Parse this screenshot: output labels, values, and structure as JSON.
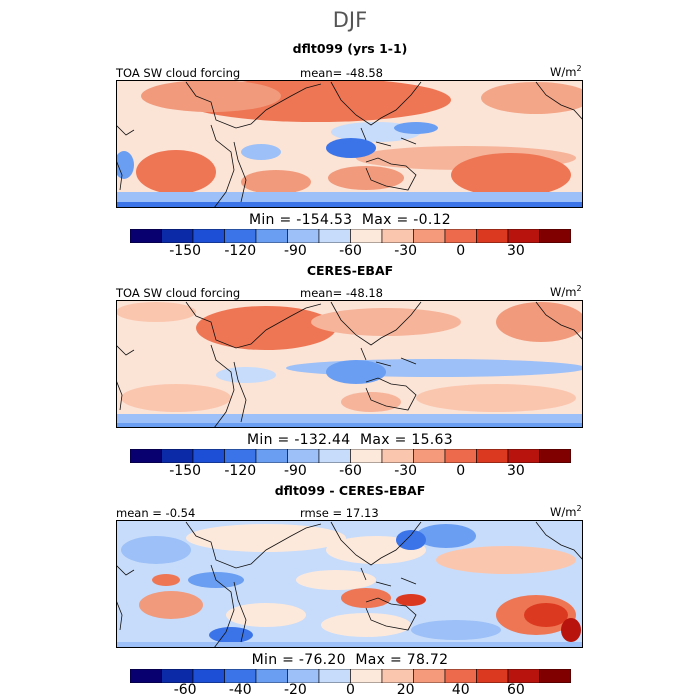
{
  "season": "DJF",
  "panels": [
    {
      "title": "dflt099 (yrs 1-1)",
      "left_label": "TOA SW cloud forcing",
      "center_label": "mean= -48.58",
      "unit": "W/m",
      "unit_exp": "2",
      "min_label": "Min = -154.53",
      "max_label": "Max =  -0.12",
      "colorbar_ticks": [
        "-150",
        "-120",
        "-90",
        "-60",
        "-30",
        "0",
        "30"
      ],
      "colorbar_colors": [
        "#08006e",
        "#0b2aa8",
        "#1d4fd6",
        "#3b74e8",
        "#6a9ef2",
        "#9cc0f7",
        "#c7dcfa",
        "#fde9dc",
        "#fbc6ae",
        "#f59a7b",
        "#ed6a4c",
        "#dc3a20",
        "#b8140d",
        "#800000"
      ]
    },
    {
      "title": "CERES-EBAF",
      "left_label": "TOA SW cloud forcing",
      "center_label": "mean= -48.18",
      "unit": "W/m",
      "unit_exp": "2",
      "min_label": "Min = -132.44",
      "max_label": "Max =  15.63",
      "colorbar_ticks": [
        "-150",
        "-120",
        "-90",
        "-60",
        "-30",
        "0",
        "30"
      ],
      "colorbar_colors": [
        "#08006e",
        "#0b2aa8",
        "#1d4fd6",
        "#3b74e8",
        "#6a9ef2",
        "#9cc0f7",
        "#c7dcfa",
        "#fde9dc",
        "#fbc6ae",
        "#f59a7b",
        "#ed6a4c",
        "#dc3a20",
        "#b8140d",
        "#800000"
      ]
    },
    {
      "title": "dflt099 - CERES-EBAF",
      "left_label": "mean = -0.54",
      "center_label": "rmse = 17.13",
      "unit": "W/m",
      "unit_exp": "2",
      "min_label": "Min = -76.20",
      "max_label": "Max =  78.72",
      "colorbar_ticks": [
        "-60",
        "-40",
        "-20",
        "0",
        "20",
        "40",
        "60"
      ],
      "colorbar_colors": [
        "#08006e",
        "#0b2aa8",
        "#1d4fd6",
        "#3b74e8",
        "#6a9ef2",
        "#9cc0f7",
        "#c7dcfa",
        "#fde9dc",
        "#fbc6ae",
        "#f59a7b",
        "#ed6a4c",
        "#dc3a20",
        "#b8140d",
        "#800000"
      ]
    }
  ]
}
